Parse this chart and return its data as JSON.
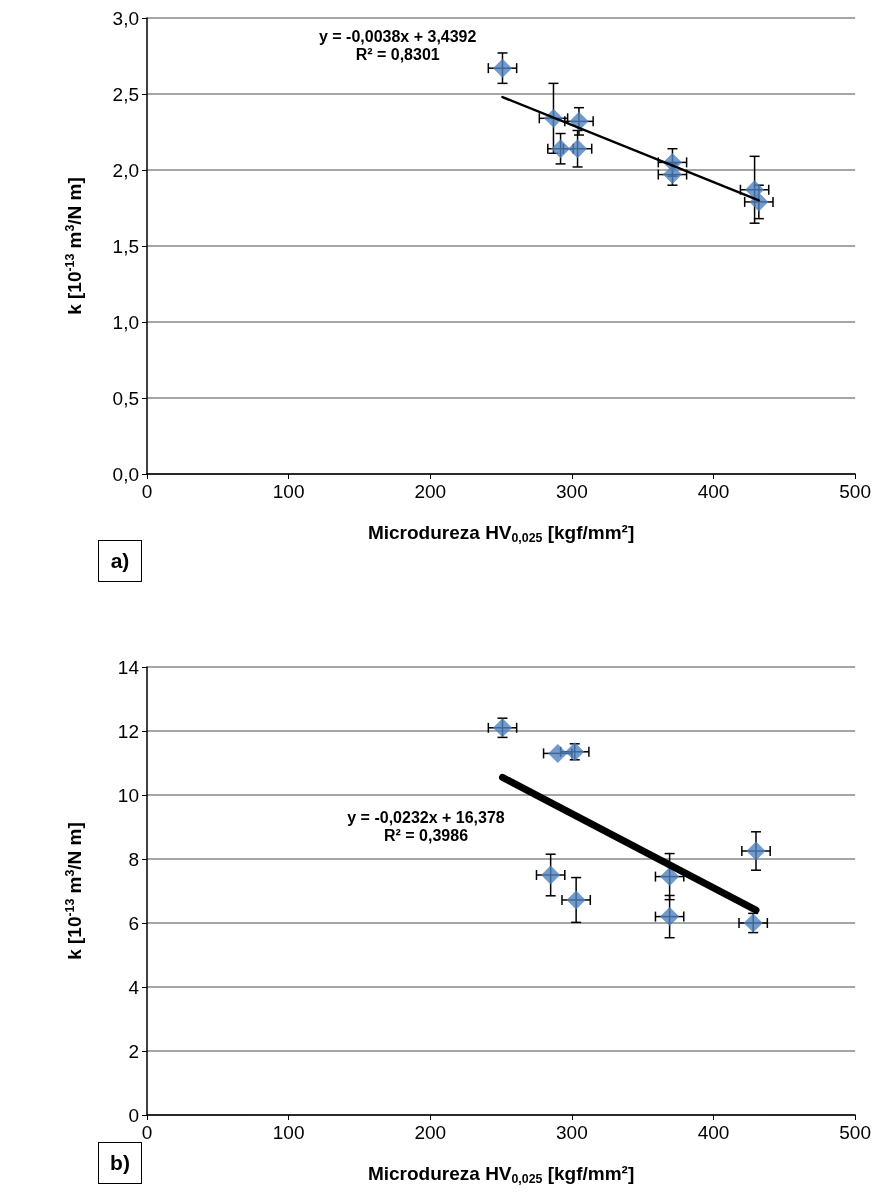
{
  "chart_data": [
    {
      "type": "scatter",
      "xlabel": "Microdureza HV$_{0,025}$ [kgf/mm²]",
      "ylabel": "k [10$^{-13}$ m$^{3}$/N m]",
      "xlim": [
        0,
        500
      ],
      "xticks": [
        0,
        100,
        200,
        300,
        400,
        500
      ],
      "ylim": [
        0,
        3
      ],
      "yticks": [
        {
          "value": 0,
          "label": "0,0"
        },
        {
          "value": 0.5,
          "label": "0,5"
        },
        {
          "value": 1,
          "label": "1,0"
        },
        {
          "value": 1.5,
          "label": "1,5"
        },
        {
          "value": 2,
          "label": "2,0"
        },
        {
          "value": 2.5,
          "label": "2,5"
        },
        {
          "value": 3,
          "label": "3,0"
        }
      ],
      "grid": "y",
      "annotations": [
        "y = -0,0038x + 3,4392",
        "R² = 0,8301",
        "a)"
      ],
      "series": [
        {
          "color": "#4f81bd",
          "marker": "diamond",
          "x": [
            251,
            287,
            305,
            292,
            304,
            371,
            371,
            429,
            432
          ],
          "values": [
            2.67,
            2.34,
            2.32,
            2.14,
            2.14,
            2.05,
            1.97,
            1.87,
            1.79
          ],
          "errors": [
            0.1,
            0.23,
            0.09,
            0.1,
            0.12,
            0.09,
            0.07,
            0.22,
            0.11
          ],
          "xerrors": [
            10,
            10,
            10,
            9,
            10,
            10,
            10,
            10,
            10
          ]
        },
        {
          "type": "line",
          "color": "#000000",
          "marker": "none",
          "x": [
            251,
            432
          ],
          "values": [
            2.48,
            1.8
          ]
        }
      ]
    },
    {
      "type": "scatter",
      "xlabel": "Microdureza HV$_{0,025}$ [kgf/mm²]",
      "ylabel": "k [10$^{-13}$ m$^{3}$/N m]",
      "xlim": [
        0,
        500
      ],
      "xticks": [
        0,
        100,
        200,
        300,
        400,
        500
      ],
      "ylim": [
        0,
        14
      ],
      "yticks": [
        0,
        2,
        4,
        6,
        8,
        10,
        12,
        14
      ],
      "grid": "y",
      "annotations": [
        "y = -0,0232x + 16,378",
        "R² = 0,3986",
        "b)"
      ],
      "series": [
        {
          "color": "#4f81bd",
          "marker": "diamond",
          "x": [
            251,
            290,
            302,
            285,
            303,
            369,
            369,
            430,
            428
          ],
          "values": [
            12.1,
            11.3,
            11.35,
            7.5,
            6.72,
            7.45,
            6.2,
            8.25,
            6.0
          ],
          "errors": [
            0.3,
            null,
            0.25,
            0.65,
            0.7,
            0.72,
            0.66,
            0.6,
            0.3
          ],
          "xerrors": [
            10,
            10,
            10,
            10,
            10,
            10,
            10,
            10,
            10
          ]
        },
        {
          "type": "line",
          "color": "#000000",
          "marker": "none",
          "x": [
            251,
            430
          ],
          "values": [
            10.55,
            6.4
          ]
        }
      ]
    }
  ]
}
